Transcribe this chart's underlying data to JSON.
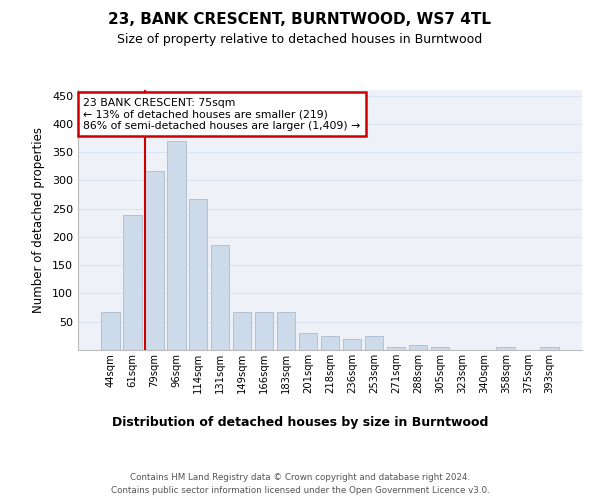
{
  "title": "23, BANK CRESCENT, BURNTWOOD, WS7 4TL",
  "subtitle": "Size of property relative to detached houses in Burntwood",
  "xlabel": "Distribution of detached houses by size in Burntwood",
  "ylabel": "Number of detached properties",
  "categories": [
    "44sqm",
    "61sqm",
    "79sqm",
    "96sqm",
    "114sqm",
    "131sqm",
    "149sqm",
    "166sqm",
    "183sqm",
    "201sqm",
    "218sqm",
    "236sqm",
    "253sqm",
    "271sqm",
    "288sqm",
    "305sqm",
    "323sqm",
    "340sqm",
    "358sqm",
    "375sqm",
    "393sqm"
  ],
  "values": [
    68,
    238,
    317,
    370,
    268,
    185,
    68,
    68,
    68,
    30,
    25,
    20,
    25,
    5,
    8,
    5,
    0,
    0,
    5,
    0,
    5
  ],
  "bar_color": "#ccdaea",
  "bar_edge_color": "#aabcce",
  "grid_color": "#d8e4f0",
  "background_color": "#eef2f8",
  "red_line_index": 2,
  "annotation_line1": "23 BANK CRESCENT: 75sqm",
  "annotation_line2": "← 13% of detached houses are smaller (219)",
  "annotation_line3": "86% of semi-detached houses are larger (1,409) →",
  "annotation_box_color": "#ffffff",
  "annotation_border_color": "#cc0000",
  "footer_text": "Contains HM Land Registry data © Crown copyright and database right 2024.\nContains public sector information licensed under the Open Government Licence v3.0.",
  "ylim": [
    0,
    460
  ],
  "yticks": [
    0,
    50,
    100,
    150,
    200,
    250,
    300,
    350,
    400,
    450
  ]
}
